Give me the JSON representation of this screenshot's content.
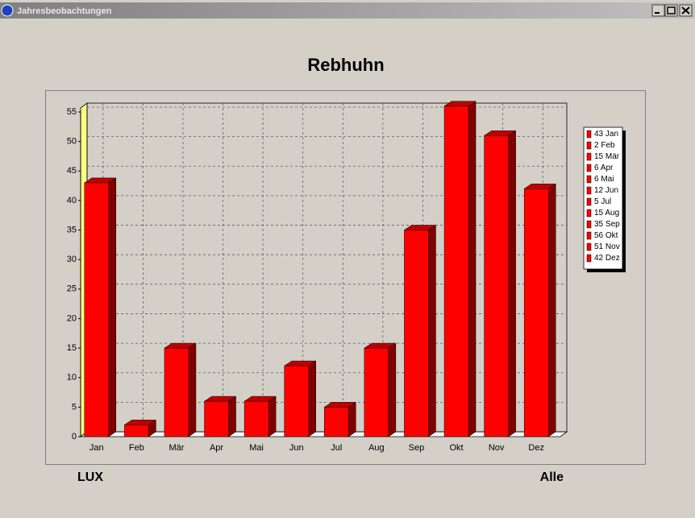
{
  "window": {
    "title": "Jahresbeobachtungen"
  },
  "chart_data": {
    "type": "bar",
    "title": "Rebhuhn",
    "categories": [
      "Jan",
      "Feb",
      "Mär",
      "Apr",
      "Mai",
      "Jun",
      "Jul",
      "Aug",
      "Sep",
      "Okt",
      "Nov",
      "Dez"
    ],
    "values": [
      43,
      2,
      15,
      6,
      6,
      12,
      5,
      15,
      35,
      56,
      51,
      42
    ],
    "color": "#ff0000",
    "ylim": [
      0,
      56
    ],
    "yticks": [
      0,
      5,
      10,
      15,
      20,
      25,
      30,
      35,
      40,
      45,
      50,
      55
    ],
    "grid": true,
    "legend": "right"
  },
  "footer": {
    "left": "LUX",
    "right": "Alle"
  }
}
